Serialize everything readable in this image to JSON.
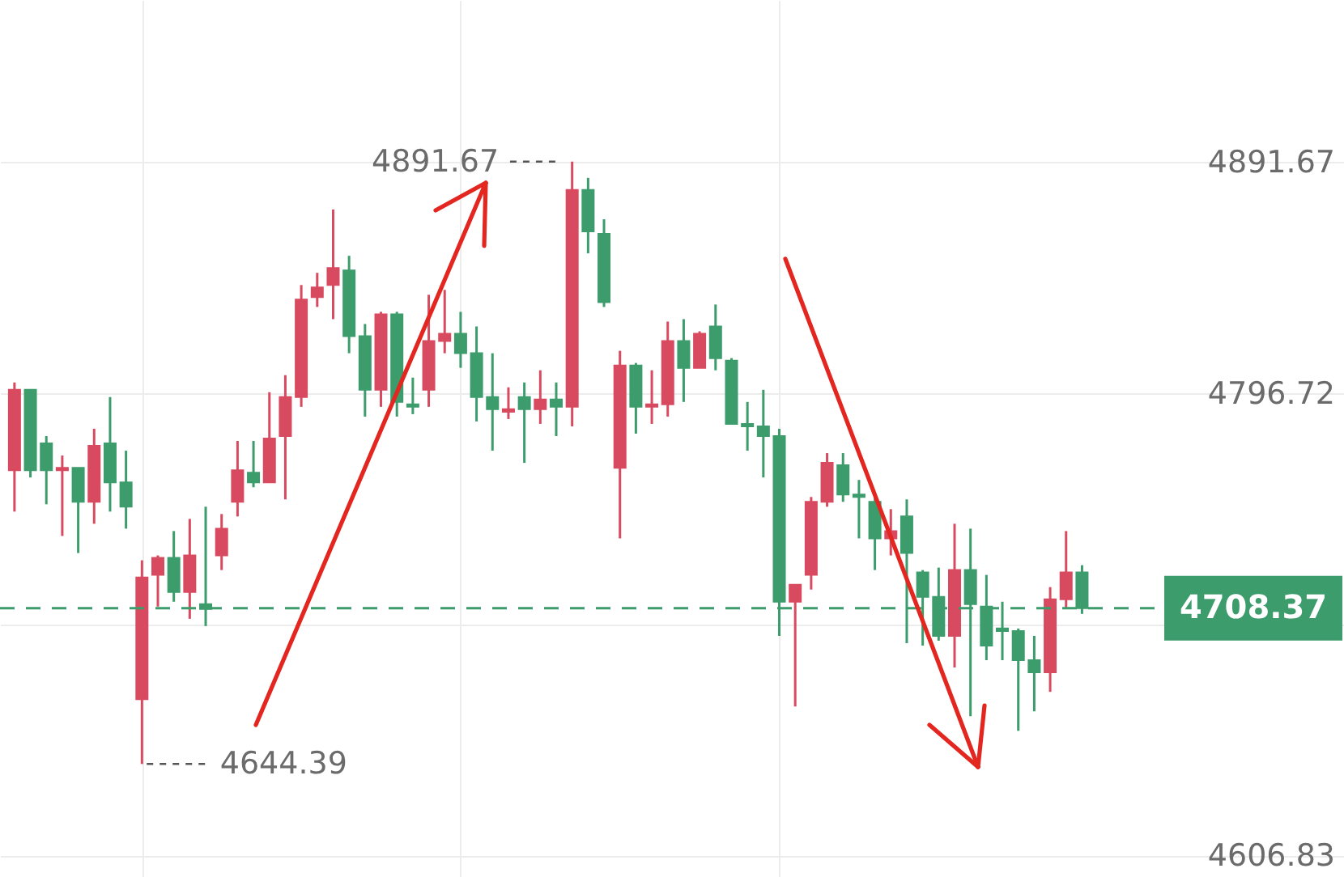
{
  "chart_data": {
    "type": "candlestick",
    "categories": [
      null,
      null,
      null,
      null,
      null,
      null,
      null,
      null,
      null,
      null,
      null,
      null,
      null,
      null,
      null,
      null,
      null,
      null,
      null,
      null,
      null,
      null,
      null,
      null,
      null,
      null,
      null,
      null,
      null,
      null,
      null,
      null,
      null,
      null,
      null,
      null,
      null,
      null,
      null,
      null,
      null,
      null,
      null,
      null,
      null,
      null,
      null,
      null,
      null,
      null,
      null,
      null,
      null,
      null,
      null,
      null,
      null,
      null,
      null,
      null,
      null,
      null,
      null,
      null,
      null,
      null,
      null,
      null
    ],
    "ohlc": [
      [
        4765,
        4801,
        4748,
        4798
      ],
      [
        4798,
        4798,
        4762,
        4765
      ],
      [
        4776,
        4779,
        4751,
        4765
      ],
      [
        4765,
        4771,
        4738,
        4766
      ],
      [
        4766,
        4766,
        4731,
        4752
      ],
      [
        4752,
        4782,
        4743,
        4775
      ],
      [
        4776,
        4795,
        4748,
        4760
      ],
      [
        4760,
        4773,
        4741,
        4750
      ],
      [
        4671,
        4728,
        4644.39,
        4721
      ],
      [
        4722,
        4730,
        4709,
        4729
      ],
      [
        4729,
        4740,
        4711,
        4715
      ],
      [
        4715,
        4745,
        4704,
        4730
      ],
      [
        4710,
        4750,
        4701,
        4708
      ],
      [
        4730,
        4747,
        4724,
        4741
      ],
      [
        4752,
        4777,
        4746,
        4765
      ],
      [
        4764,
        4777,
        4758,
        4760
      ],
      [
        4760,
        4797,
        4760,
        4778
      ],
      [
        4779,
        4804,
        4753,
        4795
      ],
      [
        4795,
        4841,
        4791,
        4835
      ],
      [
        4836,
        4846,
        4832,
        4840
      ],
      [
        4841,
        4872,
        4827,
        4848
      ],
      [
        4847,
        4853,
        4813,
        4820
      ],
      [
        4820,
        4825,
        4787,
        4798
      ],
      [
        4798,
        4830,
        4791,
        4829
      ],
      [
        4829,
        4830,
        4787,
        4793
      ],
      [
        4792,
        4803,
        4788,
        4791
      ],
      [
        4798,
        4837,
        4791,
        4818
      ],
      [
        4818,
        4839,
        4813,
        4821
      ],
      [
        4821,
        4830,
        4807,
        4813
      ],
      [
        4813,
        4824,
        4785,
        4795
      ],
      [
        4795,
        4813,
        4773,
        4790
      ],
      [
        4789,
        4799,
        4786,
        4790
      ],
      [
        4795,
        4801,
        4768,
        4790
      ],
      [
        4790,
        4806,
        4784,
        4794
      ],
      [
        4794,
        4801,
        4779,
        4791
      ],
      [
        4791,
        4891.67,
        4783,
        4880
      ],
      [
        4880,
        4885,
        4854,
        4863
      ],
      [
        4862,
        4868,
        4832,
        4834
      ],
      [
        4766,
        4814,
        4737,
        4808
      ],
      [
        4808,
        4809,
        4780,
        4791
      ],
      [
        4791,
        4806,
        4784,
        4792
      ],
      [
        4792,
        4826,
        4787,
        4818
      ],
      [
        4818,
        4827,
        4793,
        4807
      ],
      [
        4807,
        4822,
        4807,
        4821
      ],
      [
        4824,
        4833,
        4806,
        4811
      ],
      [
        4810,
        4811,
        4784,
        4784
      ],
      [
        4784,
        4793,
        4773,
        4783
      ],
      [
        4783,
        4798,
        4762,
        4779
      ],
      [
        4779,
        4782,
        4697,
        4711
      ],
      [
        4711,
        4718,
        4668,
        4718
      ],
      [
        4722,
        4754,
        4716,
        4752
      ],
      [
        4752,
        4772,
        4750,
        4768
      ],
      [
        4767,
        4772,
        4752,
        4755
      ],
      [
        4755,
        4761,
        4737,
        4754
      ],
      [
        4752,
        4754,
        4724,
        4737
      ],
      [
        4737,
        4749,
        4730,
        4740
      ],
      [
        4746,
        4753,
        4694,
        4731
      ],
      [
        4723,
        4724,
        4693,
        4713
      ],
      [
        4713,
        4725,
        4695,
        4697
      ],
      [
        4697,
        4743,
        4684,
        4724
      ],
      [
        4724,
        4741,
        4664,
        4710
      ],
      [
        4709,
        4722,
        4687,
        4693
      ],
      [
        4700,
        4711,
        4687,
        4699
      ],
      [
        4699,
        4700,
        4658,
        4687
      ],
      [
        4687,
        4697,
        4666,
        4682
      ],
      [
        4682,
        4717,
        4674,
        4712
      ],
      [
        4712,
        4740,
        4708,
        4723
      ],
      [
        4723,
        4726,
        4706,
        4708.37
      ]
    ],
    "colors": [
      "#d84a5f",
      "#3c9c6c",
      "#3c9c6c",
      "#d84a5f",
      "#3c9c6c",
      "#d84a5f",
      "#3c9c6c",
      "#3c9c6c",
      "#d84a5f",
      "#d84a5f",
      "#3c9c6c",
      "#d84a5f",
      "#3c9c6c",
      "#d84a5f",
      "#d84a5f",
      "#3c9c6c",
      "#d84a5f",
      "#d84a5f",
      "#d84a5f",
      "#d84a5f",
      "#d84a5f",
      "#3c9c6c",
      "#3c9c6c",
      "#d84a5f",
      "#3c9c6c",
      "#3c9c6c",
      "#d84a5f",
      "#d84a5f",
      "#3c9c6c",
      "#3c9c6c",
      "#3c9c6c",
      "#d84a5f",
      "#3c9c6c",
      "#d84a5f",
      "#3c9c6c",
      "#d84a5f",
      "#3c9c6c",
      "#3c9c6c",
      "#d84a5f",
      "#3c9c6c",
      "#d84a5f",
      "#d84a5f",
      "#3c9c6c",
      "#d84a5f",
      "#3c9c6c",
      "#3c9c6c",
      "#3c9c6c",
      "#3c9c6c",
      "#3c9c6c",
      "#d84a5f",
      "#d84a5f",
      "#d84a5f",
      "#3c9c6c",
      "#3c9c6c",
      "#3c9c6c",
      "#d84a5f",
      "#3c9c6c",
      "#3c9c6c",
      "#3c9c6c",
      "#d84a5f",
      "#3c9c6c",
      "#3c9c6c",
      "#3c9c6c",
      "#3c9c6c",
      "#3c9c6c",
      "#d84a5f",
      "#d84a5f",
      "#3c9c6c"
    ],
    "ylim": [
      4598,
      4958
    ],
    "yticks": [
      4606.83,
      {
        "value": 4701.78,
        "label": null
      },
      4796.72,
      4891.67
    ],
    "grid": true,
    "tick_labels": "y",
    "annotations": [
      "4891.67",
      "4644.39"
    ],
    "ref_lines": [
      {
        "axis": "y",
        "value": 4708.37,
        "label": "4708.37",
        "color": "#3c9c6c",
        "line_style": "dashed"
      }
    ]
  }
}
